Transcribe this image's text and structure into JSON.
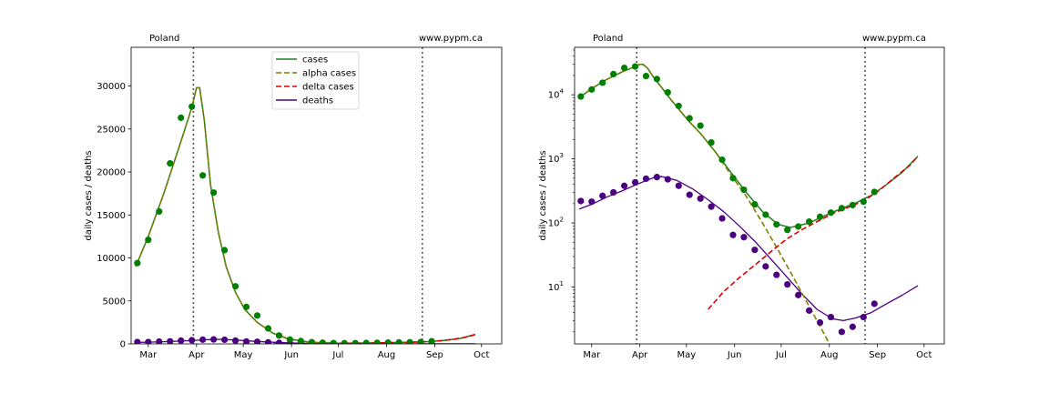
{
  "colors": {
    "cases": "#1f7f1f",
    "alpha": "#7f7f00",
    "delta": "#e00000",
    "deaths": "#4b0082",
    "marker_cases": "#008000",
    "marker_deaths": "#4b0082",
    "vline": "#555555"
  },
  "chart_data": [
    {
      "type": "line",
      "yscale": "linear",
      "annotation_left": "Poland",
      "annotation_right": "www.pypm.ca",
      "ylabel": "daily cases / deaths",
      "xlabel": "",
      "ylim": [
        0,
        34500
      ],
      "xlim": [
        -11,
        227
      ],
      "x_ticks": [
        {
          "label": "Mar",
          "day": 0
        },
        {
          "label": "Apr",
          "day": 31
        },
        {
          "label": "May",
          "day": 61
        },
        {
          "label": "Jun",
          "day": 92
        },
        {
          "label": "Jul",
          "day": 122
        },
        {
          "label": "Aug",
          "day": 153
        },
        {
          "label": "Sep",
          "day": 184
        },
        {
          "label": "Oct",
          "day": 214
        }
      ],
      "y_ticks": [
        0,
        5000,
        10000,
        15000,
        20000,
        25000,
        30000
      ],
      "y_tick_labels": [
        "0",
        "5000",
        "10000",
        "15000",
        "20000",
        "25000",
        "30000"
      ],
      "vlines_day": [
        29,
        176
      ],
      "legend": {
        "position": "top-center",
        "entries": [
          {
            "label": "cases",
            "style": "solid",
            "color": "cases"
          },
          {
            "label": "alpha cases",
            "style": "dashed",
            "color": "alpha"
          },
          {
            "label": "delta cases",
            "style": "dashed",
            "color": "delta"
          },
          {
            "label": "deaths",
            "style": "solid",
            "color": "deaths"
          }
        ]
      }
    },
    {
      "type": "line",
      "yscale": "log",
      "annotation_left": "Poland",
      "annotation_right": "www.pypm.ca",
      "ylabel": "daily cases / deaths",
      "xlabel": "",
      "ylim": [
        1.3,
        55000
      ],
      "xlim": [
        -11,
        227
      ],
      "x_ticks": [
        {
          "label": "Mar",
          "day": 0
        },
        {
          "label": "Apr",
          "day": 31
        },
        {
          "label": "May",
          "day": 61
        },
        {
          "label": "Jun",
          "day": 92
        },
        {
          "label": "Jul",
          "day": 122
        },
        {
          "label": "Aug",
          "day": 153
        },
        {
          "label": "Sep",
          "day": 184
        },
        {
          "label": "Oct",
          "day": 214
        }
      ],
      "y_ticks": [
        10,
        100,
        1000,
        10000
      ],
      "y_tick_labels": [
        {
          "base": "10",
          "exp": "1"
        },
        {
          "base": "10",
          "exp": "2"
        },
        {
          "base": "10",
          "exp": "3"
        },
        {
          "base": "10",
          "exp": "4"
        }
      ],
      "vlines_day": [
        29,
        176
      ]
    }
  ],
  "series": {
    "cases_points": [
      {
        "x": -7,
        "y": 9400
      },
      {
        "x": 0,
        "y": 12100
      },
      {
        "x": 7,
        "y": 15400
      },
      {
        "x": 14,
        "y": 21000
      },
      {
        "x": 21,
        "y": 26300
      },
      {
        "x": 28,
        "y": 27600
      },
      {
        "x": 35,
        "y": 19600
      },
      {
        "x": 42,
        "y": 17600
      },
      {
        "x": 49,
        "y": 10900
      },
      {
        "x": 56,
        "y": 6700
      },
      {
        "x": 63,
        "y": 4300
      },
      {
        "x": 70,
        "y": 3300
      },
      {
        "x": 77,
        "y": 1800
      },
      {
        "x": 84,
        "y": 970
      },
      {
        "x": 91,
        "y": 500
      },
      {
        "x": 98,
        "y": 330
      },
      {
        "x": 105,
        "y": 195
      },
      {
        "x": 112,
        "y": 135
      },
      {
        "x": 119,
        "y": 95
      },
      {
        "x": 126,
        "y": 78
      },
      {
        "x": 133,
        "y": 88
      },
      {
        "x": 140,
        "y": 105
      },
      {
        "x": 147,
        "y": 125
      },
      {
        "x": 154,
        "y": 145
      },
      {
        "x": 161,
        "y": 170
      },
      {
        "x": 168,
        "y": 190
      },
      {
        "x": 175,
        "y": 215
      },
      {
        "x": 182,
        "y": 305
      }
    ],
    "deaths_points": [
      {
        "x": -7,
        "y": 220
      },
      {
        "x": 0,
        "y": 215
      },
      {
        "x": 7,
        "y": 265
      },
      {
        "x": 14,
        "y": 300
      },
      {
        "x": 21,
        "y": 380
      },
      {
        "x": 28,
        "y": 430
      },
      {
        "x": 35,
        "y": 490
      },
      {
        "x": 42,
        "y": 520
      },
      {
        "x": 49,
        "y": 480
      },
      {
        "x": 56,
        "y": 380
      },
      {
        "x": 63,
        "y": 275
      },
      {
        "x": 70,
        "y": 240
      },
      {
        "x": 77,
        "y": 180
      },
      {
        "x": 84,
        "y": 118
      },
      {
        "x": 91,
        "y": 65
      },
      {
        "x": 98,
        "y": 60
      },
      {
        "x": 105,
        "y": 38
      },
      {
        "x": 112,
        "y": 21
      },
      {
        "x": 119,
        "y": 15.5
      },
      {
        "x": 126,
        "y": 11
      },
      {
        "x": 133,
        "y": 7.5
      },
      {
        "x": 140,
        "y": 4.3
      },
      {
        "x": 147,
        "y": 2.8
      },
      {
        "x": 154,
        "y": 3.4
      },
      {
        "x": 161,
        "y": 2.0
      },
      {
        "x": 168,
        "y": 2.4
      },
      {
        "x": 175,
        "y": 3.4
      },
      {
        "x": 182,
        "y": 5.5
      }
    ],
    "cases_model": [
      {
        "x": -8,
        "y": 9000
      },
      {
        "x": 0,
        "y": 12500
      },
      {
        "x": 10,
        "y": 17500
      },
      {
        "x": 20,
        "y": 23000
      },
      {
        "x": 28,
        "y": 27500
      },
      {
        "x": 31,
        "y": 29800
      },
      {
        "x": 33,
        "y": 29800
      },
      {
        "x": 36,
        "y": 26000
      },
      {
        "x": 40,
        "y": 18500
      },
      {
        "x": 45,
        "y": 13000
      },
      {
        "x": 50,
        "y": 9000
      },
      {
        "x": 56,
        "y": 6000
      },
      {
        "x": 62,
        "y": 4000
      },
      {
        "x": 70,
        "y": 2500
      },
      {
        "x": 80,
        "y": 1250
      },
      {
        "x": 90,
        "y": 600
      },
      {
        "x": 100,
        "y": 290
      },
      {
        "x": 110,
        "y": 150
      },
      {
        "x": 120,
        "y": 95
      },
      {
        "x": 128,
        "y": 85
      },
      {
        "x": 140,
        "y": 100
      },
      {
        "x": 150,
        "y": 130
      },
      {
        "x": 160,
        "y": 165
      },
      {
        "x": 170,
        "y": 205
      },
      {
        "x": 180,
        "y": 270
      },
      {
        "x": 190,
        "y": 400
      },
      {
        "x": 200,
        "y": 620
      },
      {
        "x": 210,
        "y": 1100
      }
    ],
    "alpha_model": [
      {
        "x": -8,
        "y": 9000
      },
      {
        "x": 0,
        "y": 12500
      },
      {
        "x": 10,
        "y": 17500
      },
      {
        "x": 20,
        "y": 23000
      },
      {
        "x": 28,
        "y": 27500
      },
      {
        "x": 31,
        "y": 29800
      },
      {
        "x": 33,
        "y": 29800
      },
      {
        "x": 36,
        "y": 26000
      },
      {
        "x": 40,
        "y": 18500
      },
      {
        "x": 45,
        "y": 13000
      },
      {
        "x": 50,
        "y": 9000
      },
      {
        "x": 56,
        "y": 6000
      },
      {
        "x": 62,
        "y": 4000
      },
      {
        "x": 70,
        "y": 2500
      },
      {
        "x": 80,
        "y": 1250
      },
      {
        "x": 90,
        "y": 550
      },
      {
        "x": 100,
        "y": 250
      },
      {
        "x": 110,
        "y": 100
      },
      {
        "x": 120,
        "y": 38
      },
      {
        "x": 130,
        "y": 14
      },
      {
        "x": 140,
        "y": 5
      },
      {
        "x": 150,
        "y": 1.8
      },
      {
        "x": 153,
        "y": 1.3
      }
    ],
    "delta_model": [
      {
        "x": 75,
        "y": 4.5
      },
      {
        "x": 85,
        "y": 8.5
      },
      {
        "x": 95,
        "y": 14
      },
      {
        "x": 105,
        "y": 22
      },
      {
        "x": 115,
        "y": 35
      },
      {
        "x": 125,
        "y": 55
      },
      {
        "x": 135,
        "y": 78
      },
      {
        "x": 145,
        "y": 105
      },
      {
        "x": 155,
        "y": 140
      },
      {
        "x": 165,
        "y": 175
      },
      {
        "x": 175,
        "y": 220
      },
      {
        "x": 185,
        "y": 320
      },
      {
        "x": 195,
        "y": 510
      },
      {
        "x": 205,
        "y": 800
      },
      {
        "x": 210,
        "y": 1100
      }
    ],
    "deaths_model": [
      {
        "x": -8,
        "y": 165
      },
      {
        "x": 0,
        "y": 195
      },
      {
        "x": 10,
        "y": 255
      },
      {
        "x": 20,
        "y": 320
      },
      {
        "x": 30,
        "y": 410
      },
      {
        "x": 40,
        "y": 510
      },
      {
        "x": 45,
        "y": 530
      },
      {
        "x": 55,
        "y": 460
      },
      {
        "x": 65,
        "y": 340
      },
      {
        "x": 75,
        "y": 230
      },
      {
        "x": 85,
        "y": 150
      },
      {
        "x": 95,
        "y": 90
      },
      {
        "x": 105,
        "y": 52
      },
      {
        "x": 115,
        "y": 28
      },
      {
        "x": 125,
        "y": 15
      },
      {
        "x": 135,
        "y": 8
      },
      {
        "x": 145,
        "y": 4.5
      },
      {
        "x": 155,
        "y": 3.2
      },
      {
        "x": 162,
        "y": 3.0
      },
      {
        "x": 170,
        "y": 3.3
      },
      {
        "x": 180,
        "y": 4.0
      },
      {
        "x": 190,
        "y": 5.5
      },
      {
        "x": 200,
        "y": 7.5
      },
      {
        "x": 210,
        "y": 10.5
      }
    ]
  }
}
